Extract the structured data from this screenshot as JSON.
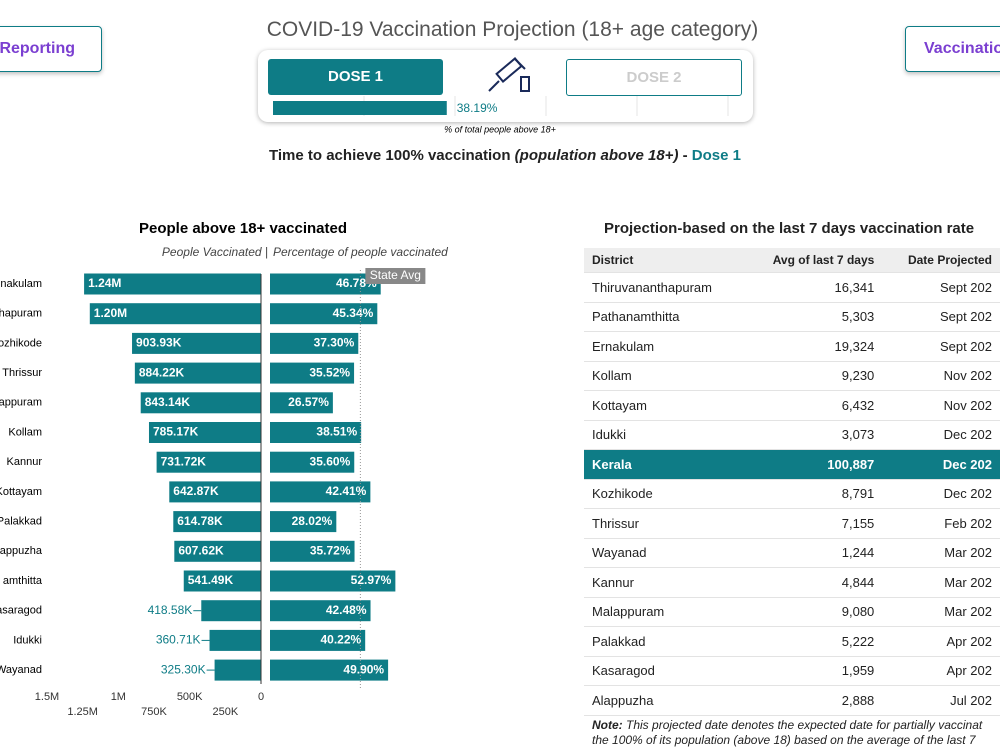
{
  "header": {
    "left_button": "Reporting",
    "right_button": "Vaccinatio",
    "title": "COVID-19 Vaccination Projection (18+ age category)",
    "dose1": "DOSE 1",
    "dose2": "DOSE 2",
    "progress": {
      "value": 38.19,
      "label": "38.19%",
      "xlim": [
        0,
        100
      ]
    },
    "progress_caption": "% of total people above 18+",
    "subtitle": {
      "text": "Time to achieve 100% vaccination",
      "italic": "(population above 18+)",
      "dash": "-",
      "dose": "Dose 1"
    }
  },
  "chart_data": [
    {
      "type": "hbar",
      "title": "People above 18+ vaccinated",
      "subtitle": "People Vaccinated  |",
      "color": "#0e7c86",
      "direction": "left",
      "categories": [
        "nakulam",
        "hapuram",
        "ozhikode",
        "Thrissur",
        "appuram",
        "Kollam",
        "Kannur",
        "Kottayam",
        "Palakkad",
        "appuzha",
        "amthitta",
        "asaragod",
        "Idukki",
        "Wayanad"
      ],
      "values": [
        1240000,
        1200000,
        903930,
        884220,
        843140,
        785170,
        731720,
        642870,
        614780,
        607620,
        541490,
        418580,
        360710,
        325300
      ],
      "value_labels": [
        "1.24M",
        "1.20M",
        "903.93K",
        "884.22K",
        "843.14K",
        "785.17K",
        "731.72K",
        "642.87K",
        "614.78K",
        "607.62K",
        "541.49K",
        "418.58K",
        "360.71K",
        "325.30K"
      ],
      "xlim": [
        0,
        1500000
      ],
      "xticks": [
        {
          "value": 1500000,
          "label": "1.5M"
        },
        {
          "value": 1250000,
          "label": "1.25M"
        },
        {
          "value": 1000000,
          "label": "1M"
        },
        {
          "value": 750000,
          "label": "750K"
        },
        {
          "value": 500000,
          "label": "500K"
        },
        {
          "value": 250000,
          "label": "250K"
        },
        0
      ]
    },
    {
      "type": "hbar",
      "subtitle": "Percentage of people vaccinated",
      "color": "#0e7c86",
      "direction": "right",
      "values": [
        46.78,
        45.34,
        37.3,
        35.52,
        26.57,
        38.51,
        35.6,
        42.41,
        28.02,
        35.72,
        52.97,
        42.48,
        40.22,
        49.9
      ],
      "value_labels": [
        "46.78%",
        "45.34%",
        "37.30%",
        "35.52%",
        "26.57%",
        "38.51%",
        "35.60%",
        "42.41%",
        "28.02%",
        "35.72%",
        "52.97%",
        "42.48%",
        "40.22%",
        "49.90%"
      ],
      "xlim": [
        0,
        60
      ],
      "reference": {
        "label": "State Avg",
        "value": 38.19
      }
    }
  ],
  "table": {
    "title": "Projection-based on the last 7 days vaccination rate",
    "columns": [
      "District",
      "Avg of last 7 days",
      "Date Projected"
    ],
    "highlight_row": 6,
    "rows": [
      [
        "Thiruvananthapuram",
        "16,341",
        "Sept 202"
      ],
      [
        "Pathanamthitta",
        "5,303",
        "Sept 202"
      ],
      [
        "Ernakulam",
        "19,324",
        "Sept 202"
      ],
      [
        "Kollam",
        "9,230",
        "Nov 202"
      ],
      [
        "Kottayam",
        "6,432",
        "Nov 202"
      ],
      [
        "Idukki",
        "3,073",
        "Dec 202"
      ],
      [
        "Kerala",
        "100,887",
        "Dec 202"
      ],
      [
        "Kozhikode",
        "8,791",
        "Dec 202"
      ],
      [
        "Thrissur",
        "7,155",
        "Feb 202"
      ],
      [
        "Wayanad",
        "1,244",
        "Mar 202"
      ],
      [
        "Kannur",
        "4,844",
        "Mar 202"
      ],
      [
        "Malappuram",
        "9,080",
        "Mar 202"
      ],
      [
        "Palakkad",
        "5,222",
        "Apr 202"
      ],
      [
        "Kasaragod",
        "1,959",
        "Apr 202"
      ],
      [
        "Alappuzha",
        "2,888",
        "Jul 202"
      ]
    ]
  },
  "note": {
    "label": "Note:",
    "lines": [
      "This projected date denotes the expected date for partially vaccinat",
      "the 100% of its population (above 18) based on the average of the last 7"
    ]
  }
}
